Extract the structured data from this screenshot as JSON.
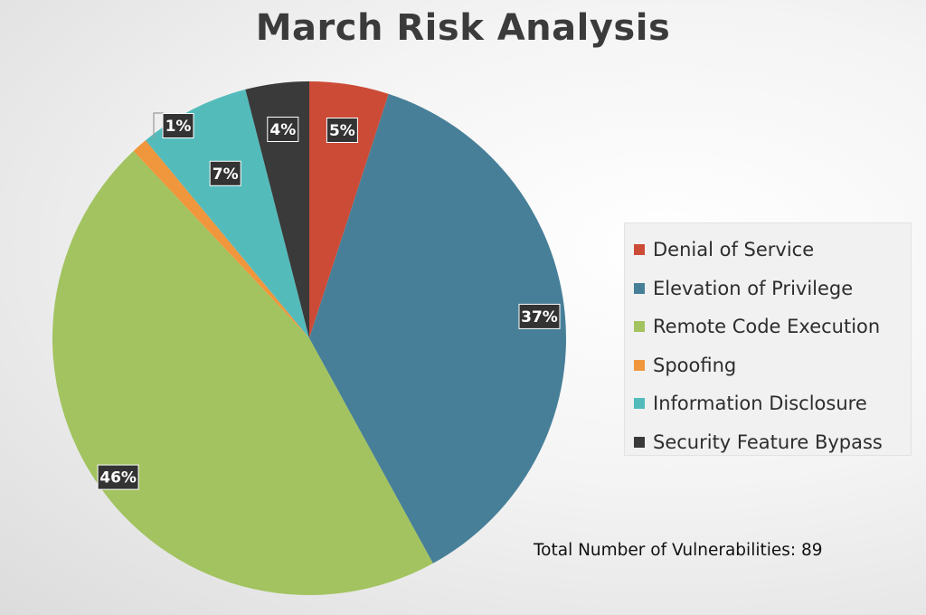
{
  "chart_data": {
    "type": "pie",
    "title": "March Risk Analysis",
    "slices": [
      {
        "name": "Denial of Service",
        "value": 5,
        "label": "5%",
        "color": "#cc4b37"
      },
      {
        "name": "Elevation of Privilege",
        "value": 37,
        "label": "37%",
        "color": "#477f98"
      },
      {
        "name": "Remote Code Execution",
        "value": 46,
        "label": "46%",
        "color": "#a2c35f"
      },
      {
        "name": "Spoofing",
        "value": 1,
        "label": "1%",
        "color": "#f0963c"
      },
      {
        "name": "Information Disclosure",
        "value": 7,
        "label": "7%",
        "color": "#54bbbb"
      },
      {
        "name": "Security Feature Bypass",
        "value": 4,
        "label": "4%",
        "color": "#3a3a3a"
      }
    ],
    "legend_position": "right",
    "note": "Total Number of Vulnerabilities: 89"
  }
}
